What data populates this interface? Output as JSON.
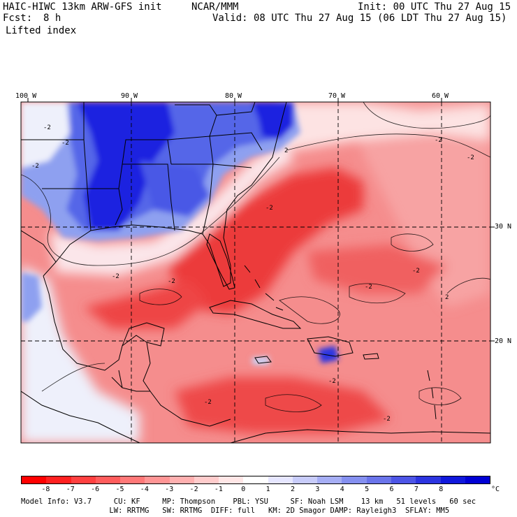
{
  "header": {
    "model_title": "HAIC-HIWC 13km ARW-GFS init",
    "agency": "NCAR/MMM",
    "init_label": "Init: 00 UTC Thu 27 Aug 15",
    "fcst_label": "Fcst:",
    "fcst_value": "8 h",
    "valid_label": "Valid: 08 UTC Thu 27 Aug 15 (06 LDT Thu 27 Aug 15)",
    "field_name": "Lifted index"
  },
  "map": {
    "longitude_labels": [
      "100 W",
      "90 W",
      "80 W",
      "70 W",
      "60 W"
    ],
    "latitude_labels": [
      "30 N",
      "20 N"
    ],
    "contour_labels": [
      "-2",
      "-2",
      "-2",
      "-2",
      "-2",
      "2",
      "-2",
      "-2",
      "-2",
      "2",
      "-2",
      "-2",
      "-2",
      "-2",
      "-2"
    ],
    "colors": {
      "stable_dark": "#0a12e6",
      "stable_mid": "#6f86ee",
      "stable_light": "#c9d3f7",
      "neutral": "#ffffff",
      "unstable_light": "#fbbdbd",
      "unstable_mid": "#f6797a",
      "unstable_dark": "#ee3030",
      "border": "#000000"
    }
  },
  "colorbar": {
    "colors": [
      "#ff0000",
      "#ff2020",
      "#ff4040",
      "#ff5c5c",
      "#ff7878",
      "#ff9595",
      "#ffb0b0",
      "#ffcccc",
      "#ffe6e6",
      "#ffffff",
      "#e6e6ff",
      "#c8ccfa",
      "#a6aef5",
      "#8590f0",
      "#6a74ea",
      "#4d55e6",
      "#2c34e0",
      "#1018dc",
      "#0000d4"
    ],
    "tick_labels": [
      "-8",
      "-7",
      "-6",
      "-5",
      "-4",
      "-3",
      "-2",
      "-1",
      "0",
      "1",
      "2",
      "3",
      "4",
      "5",
      "6",
      "7",
      "8"
    ],
    "units": "°C"
  },
  "footer": {
    "line1": "Model Info: V3.7     CU: KF     MP: Thompson    PBL: YSU     SF: Noah LSM    13 km   51 levels   60 sec",
    "line2": "                    LW: RRTMG   SW: RRTMG  DIFF: full   KM: 2D Smagor DAMP: Rayleigh3  SFLAY: MM5"
  }
}
